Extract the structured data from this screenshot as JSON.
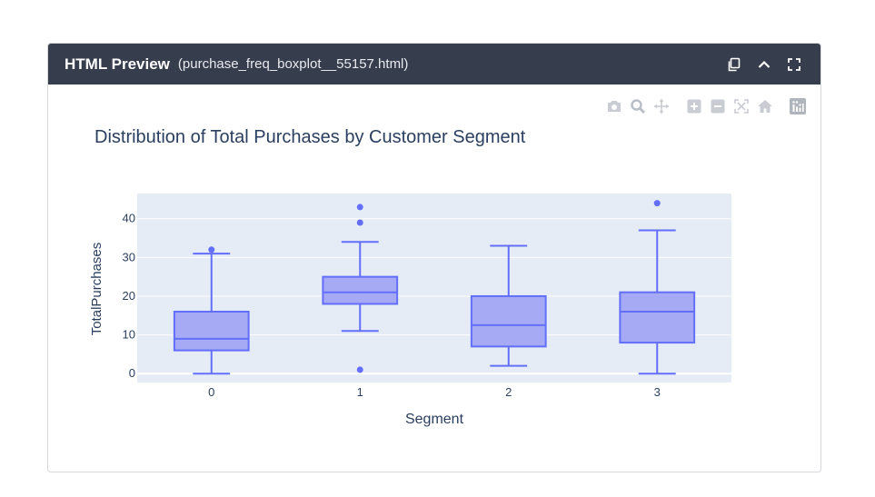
{
  "window": {
    "title": "HTML Preview",
    "filename": "(purchase_freq_boxplot__55157.html)",
    "header_icons": [
      "copy-icon",
      "collapse-icon",
      "fullscreen-icon"
    ]
  },
  "modebar": {
    "icons": [
      "camera-icon",
      "zoom-icon",
      "pan-icon",
      "zoom-in-icon",
      "zoom-out-icon",
      "autoscale-icon",
      "reset-axes-icon",
      "plotly-logo-icon"
    ]
  },
  "colors": {
    "header_bg": "#363e4d",
    "plot_bg": "#e5ecf6",
    "box_line": "#636efa",
    "box_fill": "#a6aaf4"
  },
  "chart_data": {
    "type": "box",
    "title": "Distribution of Total Purchases by Customer Segment",
    "xlabel": "Segment",
    "ylabel": "TotalPurchases",
    "categories": [
      "0",
      "1",
      "2",
      "3"
    ],
    "yticks": [
      0,
      10,
      20,
      30,
      40
    ],
    "ylim": [
      -2.3,
      46.5
    ],
    "grid": true,
    "boxes": [
      {
        "category": "0",
        "lower_whisker": 0,
        "q1": 6,
        "median": 9,
        "q3": 16,
        "upper_whisker": 31,
        "outliers": [
          32
        ]
      },
      {
        "category": "1",
        "lower_whisker": 11,
        "q1": 18,
        "median": 21,
        "q3": 25,
        "upper_whisker": 34,
        "outliers": [
          1,
          39,
          43
        ]
      },
      {
        "category": "2",
        "lower_whisker": 2,
        "q1": 7,
        "median": 12.5,
        "q3": 20,
        "upper_whisker": 33,
        "outliers": []
      },
      {
        "category": "3",
        "lower_whisker": 0,
        "q1": 8,
        "median": 16,
        "q3": 21,
        "upper_whisker": 37,
        "outliers": [
          44
        ]
      }
    ]
  }
}
